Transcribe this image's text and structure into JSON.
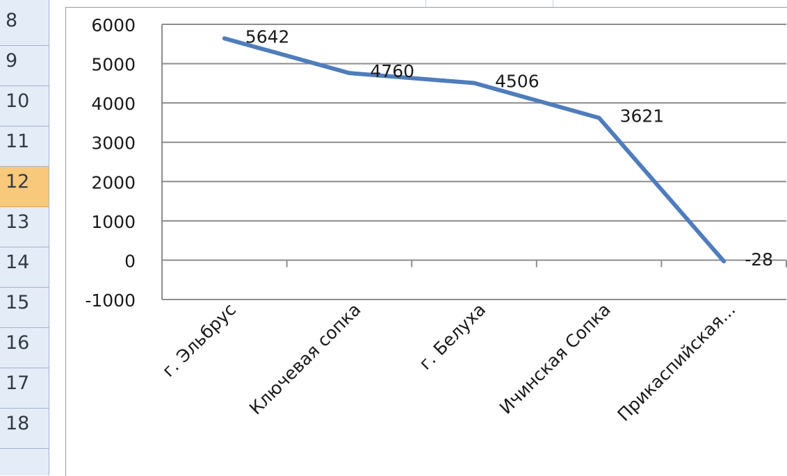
{
  "sheet": {
    "row_numbers": [
      "8",
      "9",
      "10",
      "11",
      "12",
      "13",
      "14",
      "15",
      "16",
      "17",
      "18"
    ],
    "selected_row": "12"
  },
  "chart_data": {
    "type": "line",
    "categories": [
      "г. Эльбрус",
      "Ключевая сопка",
      "г. Белуха",
      "Ичинская Сопка",
      "Прикаспийская..."
    ],
    "values": [
      5642,
      4760,
      4506,
      3621,
      -28
    ],
    "data_labels": [
      "5642",
      "4760",
      "4506",
      "3621",
      "-28"
    ],
    "y_ticks": [
      "6000",
      "5000",
      "4000",
      "3000",
      "2000",
      "1000",
      "0",
      "-1000"
    ],
    "ylim": [
      -1000,
      6000
    ],
    "title": "",
    "xlabel": "",
    "ylabel": "",
    "grid": true,
    "legend": "none",
    "colors": {
      "line": "#4f7dbc",
      "grid": "#8c8c8c",
      "text": "#1a1a1a"
    }
  }
}
